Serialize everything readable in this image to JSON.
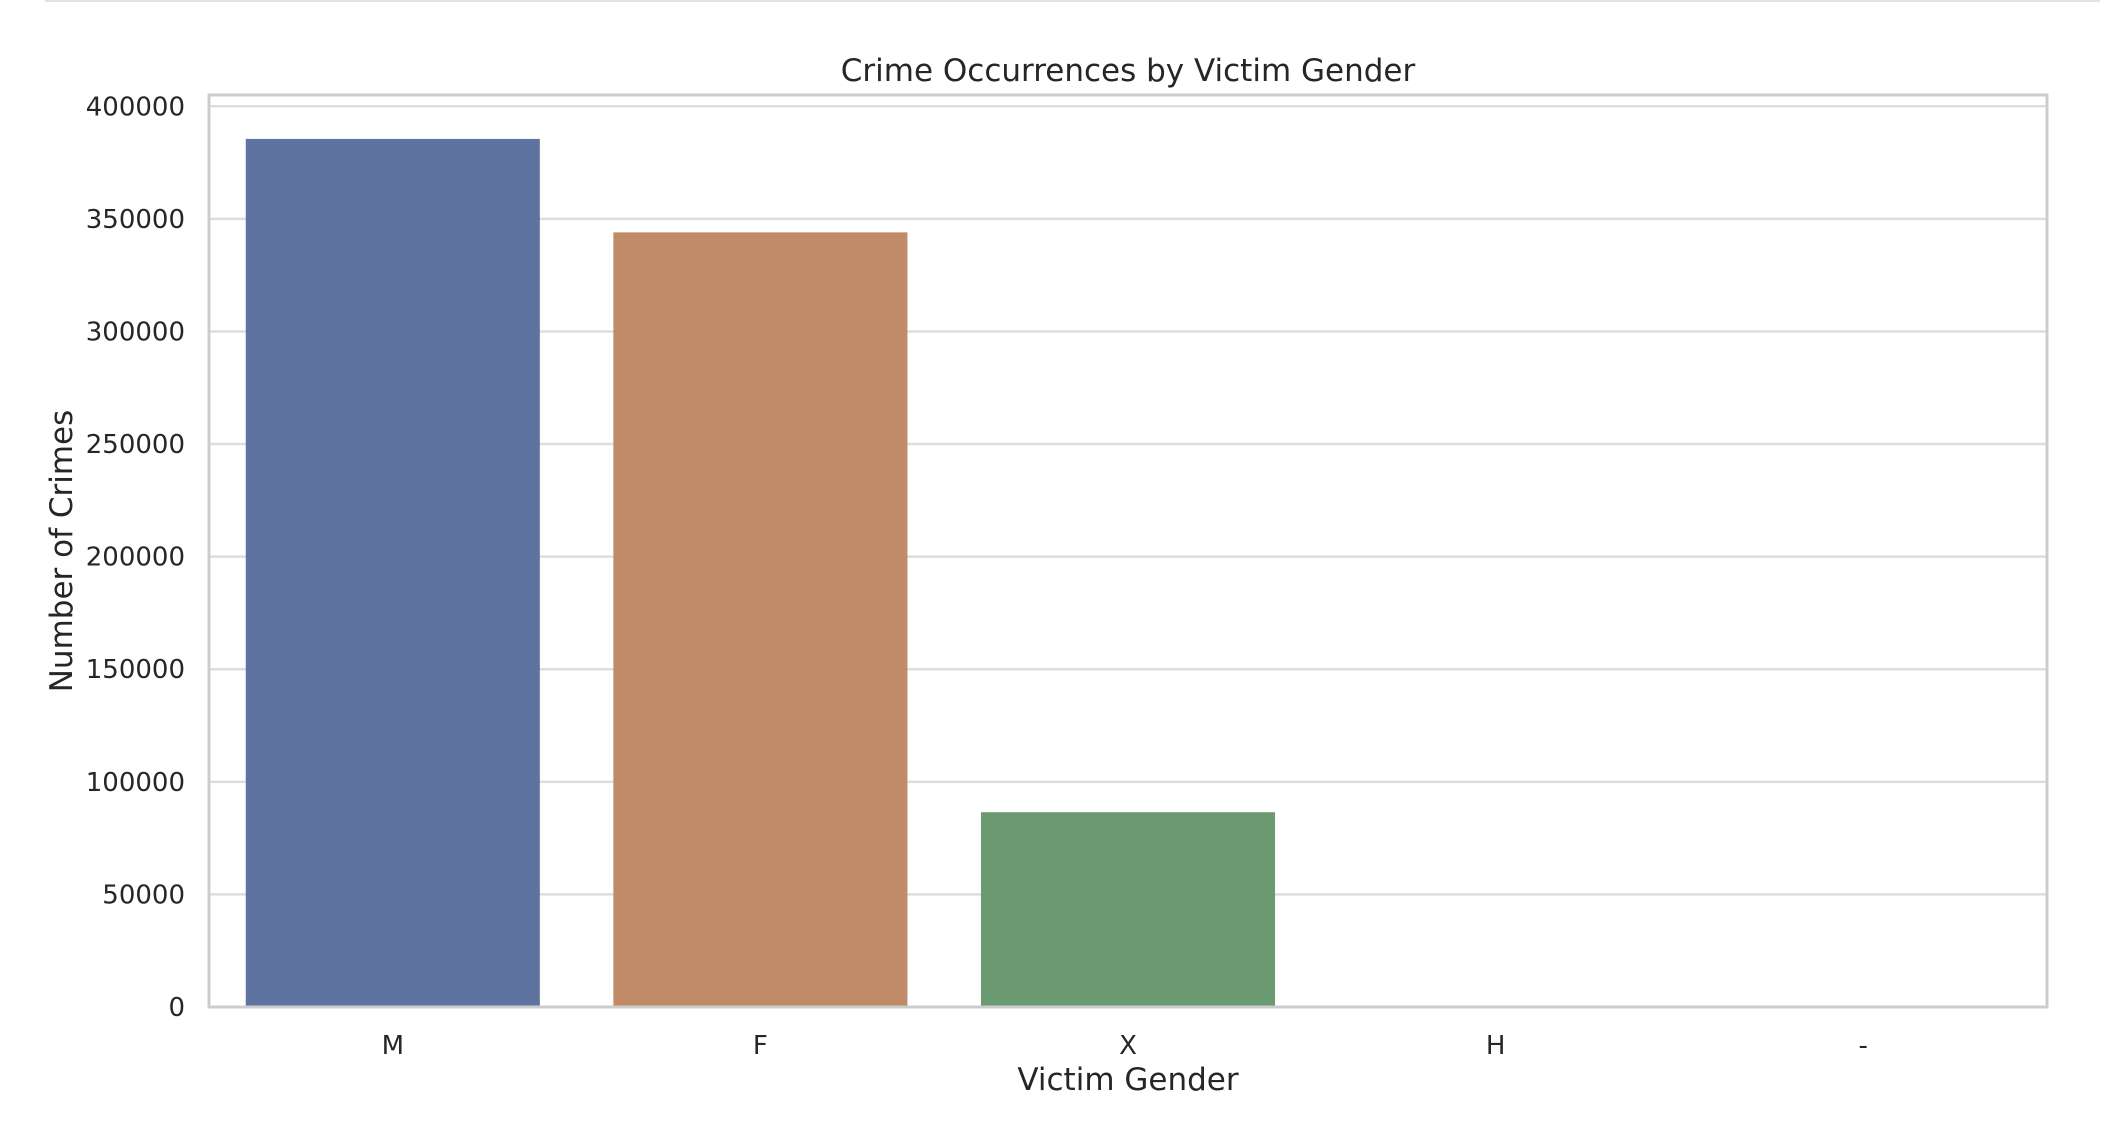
{
  "chart_data": {
    "type": "bar",
    "title": "Crime Occurrences by Victim Gender",
    "xlabel": "Victim Gender",
    "ylabel": "Number of Crimes",
    "categories": [
      "M",
      "F",
      "X",
      "H",
      "-"
    ],
    "values": [
      385500,
      344000,
      86500,
      100,
      2
    ],
    "colors": [
      "#5f73a1",
      "#c28b67",
      "#6b9a70",
      "#b3514f",
      "#7e6ba8"
    ],
    "ylim": [
      0,
      405000
    ],
    "yticks": [
      0,
      50000,
      100000,
      150000,
      200000,
      250000,
      300000,
      350000,
      400000
    ],
    "ytick_labels": [
      "0",
      "50000",
      "100000",
      "150000",
      "200000",
      "250000",
      "300000",
      "350000",
      "400000"
    ],
    "grid": "horizontal",
    "legend": "none"
  }
}
